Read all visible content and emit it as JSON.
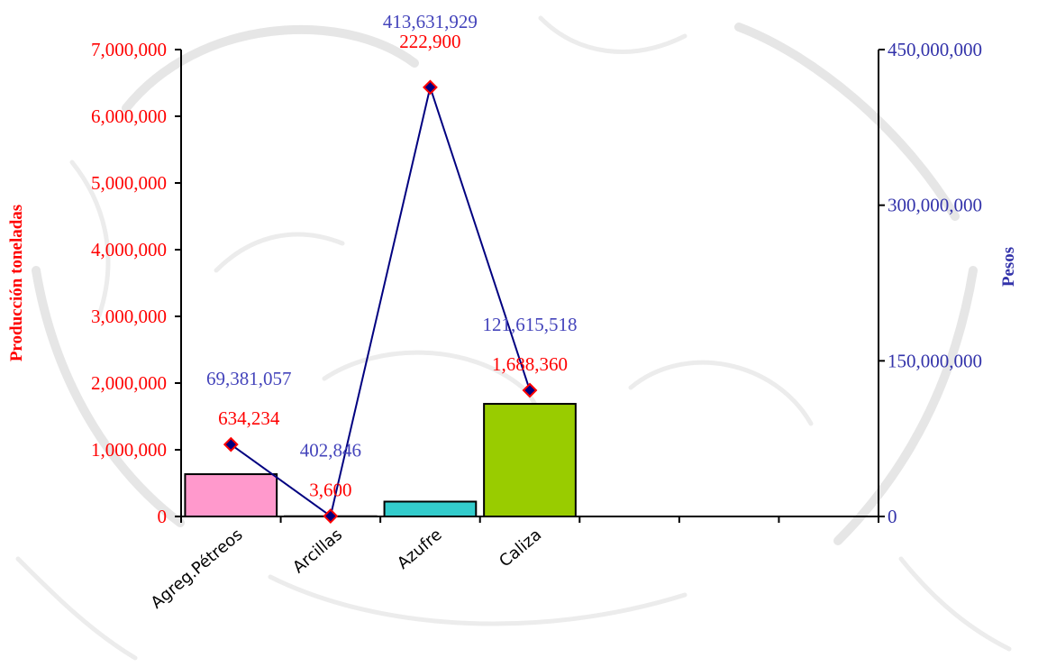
{
  "chart_data": {
    "type": "bar",
    "categories": [
      "Agreg.Pétreos",
      "Arcillas",
      "Azufre",
      "Caliza"
    ],
    "ylabel": "Producción toneladas",
    "y2label": "Pesos",
    "ylim": [
      0,
      7000000
    ],
    "y2lim": [
      0,
      450000000
    ],
    "yticks": [
      "0",
      "1,000,000",
      "2,000,000",
      "3,000,000",
      "4,000,000",
      "5,000,000",
      "6,000,000",
      "7,000,000"
    ],
    "y2ticks": [
      "0",
      "150,000,000",
      "300,000,000",
      "450,000,000"
    ],
    "series": [
      {
        "type": "bar",
        "axis": "left",
        "values": [
          634234,
          3600,
          222900,
          1688360
        ],
        "labels": [
          "634,234",
          "3,600",
          "222,900",
          "1,688,360"
        ],
        "colors": [
          "#ff99cc",
          "#ff99cc",
          "#33cccc",
          "#99cc00"
        ]
      },
      {
        "type": "line",
        "axis": "right",
        "values": [
          69381057,
          402846,
          413631929,
          121615518
        ],
        "labels": [
          "69,381,057",
          "402,846",
          "413,631,929",
          "121,615,518"
        ],
        "color": "#000080",
        "marker_color": "#ff0000"
      }
    ],
    "grid": false,
    "legend": "none"
  }
}
